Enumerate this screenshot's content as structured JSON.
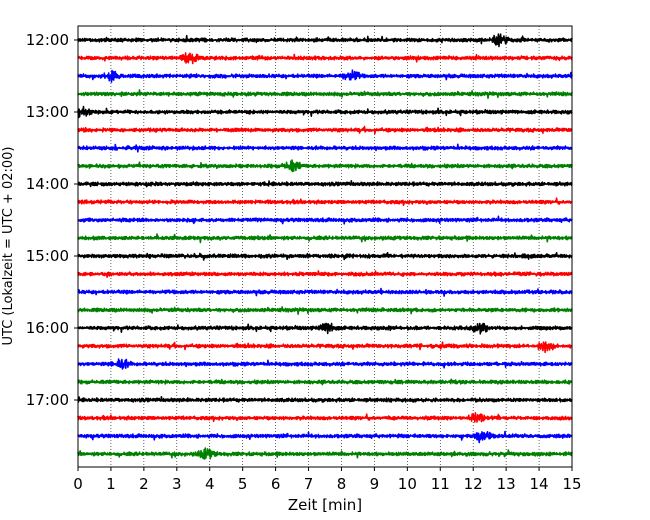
{
  "chart_data": {
    "type": "line",
    "title": "",
    "xlabel": "Zeit  [min]",
    "ylabel": "UTC (Lokalzeit = UTC + 02:00)",
    "xlim": [
      0,
      15
    ],
    "x_ticks": [
      "0",
      "1",
      "2",
      "3",
      "4",
      "5",
      "6",
      "7",
      "8",
      "9",
      "10",
      "11",
      "12",
      "13",
      "14",
      "15"
    ],
    "y_ticks": [
      "12:00",
      "13:00",
      "14:00",
      "15:00",
      "16:00",
      "17:00"
    ],
    "grid": "vertical dotted lines at each minute",
    "trace_interval_minutes": 15,
    "trace_color_cycle": [
      "#000000",
      "#ff0000",
      "#0000ff",
      "#008000"
    ],
    "traces": [
      {
        "start": "12:00",
        "color": "#000000"
      },
      {
        "start": "12:15",
        "color": "#ff0000"
      },
      {
        "start": "12:30",
        "color": "#0000ff"
      },
      {
        "start": "12:45",
        "color": "#008000"
      },
      {
        "start": "13:00",
        "color": "#000000"
      },
      {
        "start": "13:15",
        "color": "#ff0000"
      },
      {
        "start": "13:30",
        "color": "#0000ff"
      },
      {
        "start": "13:45",
        "color": "#008000"
      },
      {
        "start": "14:00",
        "color": "#000000"
      },
      {
        "start": "14:15",
        "color": "#ff0000"
      },
      {
        "start": "14:30",
        "color": "#0000ff"
      },
      {
        "start": "14:45",
        "color": "#008000"
      },
      {
        "start": "15:00",
        "color": "#000000"
      },
      {
        "start": "15:15",
        "color": "#ff0000"
      },
      {
        "start": "15:30",
        "color": "#0000ff"
      },
      {
        "start": "15:45",
        "color": "#008000"
      },
      {
        "start": "16:00",
        "color": "#000000"
      },
      {
        "start": "16:15",
        "color": "#ff0000"
      },
      {
        "start": "16:30",
        "color": "#0000ff"
      },
      {
        "start": "16:45",
        "color": "#008000"
      },
      {
        "start": "17:00",
        "color": "#000000"
      },
      {
        "start": "17:15",
        "color": "#ff0000"
      },
      {
        "start": "17:30",
        "color": "#0000ff"
      },
      {
        "start": "17:45",
        "color": "#008000"
      }
    ],
    "notable_events": [
      {
        "trace": "12:00",
        "minute": 12.8
      },
      {
        "trace": "12:15",
        "minute": 3.4
      },
      {
        "trace": "12:30",
        "minute": 1.0
      },
      {
        "trace": "12:30",
        "minute": 8.3
      },
      {
        "trace": "13:00",
        "minute": 0.1
      },
      {
        "trace": "13:45",
        "minute": 6.5
      },
      {
        "trace": "16:00",
        "minute": 12.2
      },
      {
        "trace": "16:00",
        "minute": 7.6
      },
      {
        "trace": "16:15",
        "minute": 14.2
      },
      {
        "trace": "16:30",
        "minute": 1.3
      },
      {
        "trace": "17:15",
        "minute": 12.1
      },
      {
        "trace": "17:30",
        "minute": 12.3
      },
      {
        "trace": "17:45",
        "minute": 3.9
      }
    ]
  }
}
